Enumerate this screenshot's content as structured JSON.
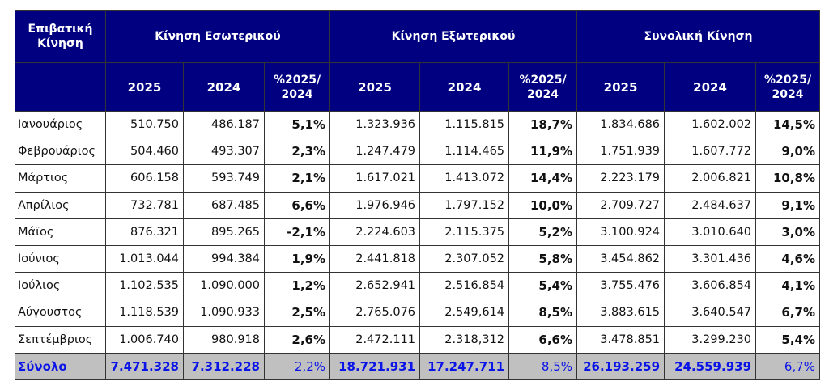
{
  "header": {
    "corner": "Επιβατική Κίνηση",
    "groups": [
      "Κίνηση Εσωτερικού",
      "Κίνηση Εξωτερικού",
      "Συνολική Κίνηση"
    ],
    "subcols": [
      "2025",
      "2024",
      "%2025/ 2024"
    ]
  },
  "colors": {
    "header_bg": "#000080",
    "total_bg": "#c0c0c0",
    "total_text": "#0a14e6"
  },
  "rows": [
    [
      "Ιανουάριος",
      "510.750",
      "486.187",
      "5,1%",
      "1.323.936",
      "1.115.815",
      "18,7%",
      "1.834.686",
      "1.602.002",
      "14,5%"
    ],
    [
      "Φεβρουάριος",
      "504.460",
      "493.307",
      "2,3%",
      "1.247.479",
      "1.114.465",
      "11,9%",
      "1.751.939",
      "1.607.772",
      "9,0%"
    ],
    [
      "Μάρτιος",
      "606.158",
      "593.749",
      "2,1%",
      "1.617.021",
      "1.413.072",
      "14,4%",
      "2.223.179",
      "2.006.821",
      "10,8%"
    ],
    [
      "Απρίλιος",
      "732.781",
      "687.485",
      "6,6%",
      "1.976.946",
      "1.797.152",
      "10,0%",
      "2.709.727",
      "2.484.637",
      "9,1%"
    ],
    [
      "Μάϊος",
      "876.321",
      "895.265",
      "-2,1%",
      "2.224.603",
      "2.115.375",
      "5,2%",
      "3.100.924",
      "3.010.640",
      "3,0%"
    ],
    [
      "Ιούνιος",
      "1.013.044",
      "994.384",
      "1,9%",
      "2.441.818",
      "2.307.052",
      "5,8%",
      "3.454.862",
      "3.301.436",
      "4,6%"
    ],
    [
      "Ιούλιος",
      "1.102.535",
      "1.090.000",
      "1,2%",
      "2.652.941",
      "2.516.854",
      "5,4%",
      "3.755.476",
      "3.606.854",
      "4,1%"
    ],
    [
      "Αύγουστος",
      "1.118.539",
      "1.090.933",
      "2,5%",
      "2.765.076",
      "2.549,614",
      "8,5%",
      "3.883.615",
      "3.640.547",
      "6,7%"
    ],
    [
      "Σεπτέμβριος",
      "1.006.740",
      "980.918",
      "2,6%",
      "2.472.111",
      "2.318,312",
      "6,6%",
      "3.478.851",
      "3.299.230",
      "5,4%"
    ]
  ],
  "total": [
    "Σύνολο",
    "7.471.328",
    "7.312.228",
    "2,2%",
    "18.721.931",
    "17.247.711",
    "8,5%",
    "26.193.259",
    "24.559.939",
    "6,7%"
  ]
}
